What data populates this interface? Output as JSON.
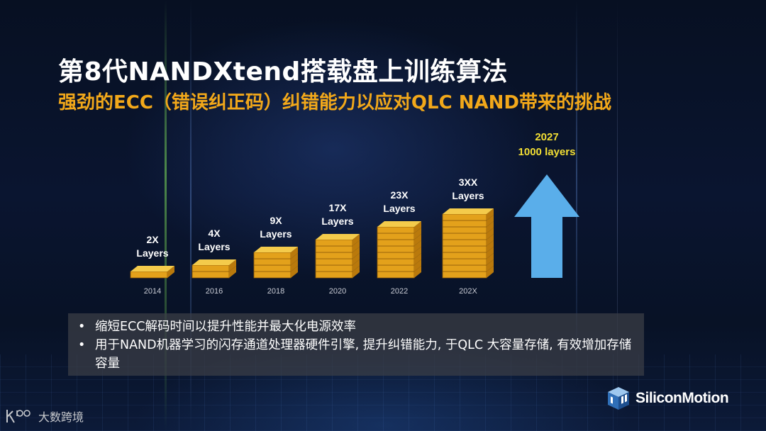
{
  "slide": {
    "title": "第8代NANDXtend搭载盘上训练算法",
    "subtitle": "强劲的ECC（错误纠正码）纠错能力以应对QLC NAND带来的挑战"
  },
  "chart_data": {
    "type": "bar",
    "categories": [
      "2014",
      "2016",
      "2018",
      "2020",
      "2022",
      "202X"
    ],
    "labels": [
      [
        "2X",
        "Layers"
      ],
      [
        "4X",
        "Layers"
      ],
      [
        "9X",
        "Layers"
      ],
      [
        "17X",
        "Layers"
      ],
      [
        "23X",
        "Layers"
      ],
      [
        "3XX",
        "Layers"
      ]
    ],
    "stack_counts": [
      1,
      2,
      4,
      6,
      8,
      10
    ],
    "future": {
      "label_line1": "2027",
      "label_line2": "1000 layers"
    },
    "colors": {
      "layer_top": "#f4cb4b",
      "layer_front": "#e3a11b",
      "layer_side": "#b9790c",
      "arrow": "#5aaeea"
    }
  },
  "bullets": [
    {
      "dot": "•",
      "text": "缩短ECC解码时间以提升性能并最大化电源效率"
    },
    {
      "dot": "•",
      "text": "用于NAND机器学习的闪存通道处理器硬件引擎, 提升纠错能力, 于QLC 大容量存储, 有效增加存储容量"
    }
  ],
  "logo": {
    "text": "SiliconMotion",
    "icon": "silicon-motion-cube-icon"
  },
  "watermark": {
    "text": "大数跨境",
    "icon": "k100-watermark-icon"
  }
}
